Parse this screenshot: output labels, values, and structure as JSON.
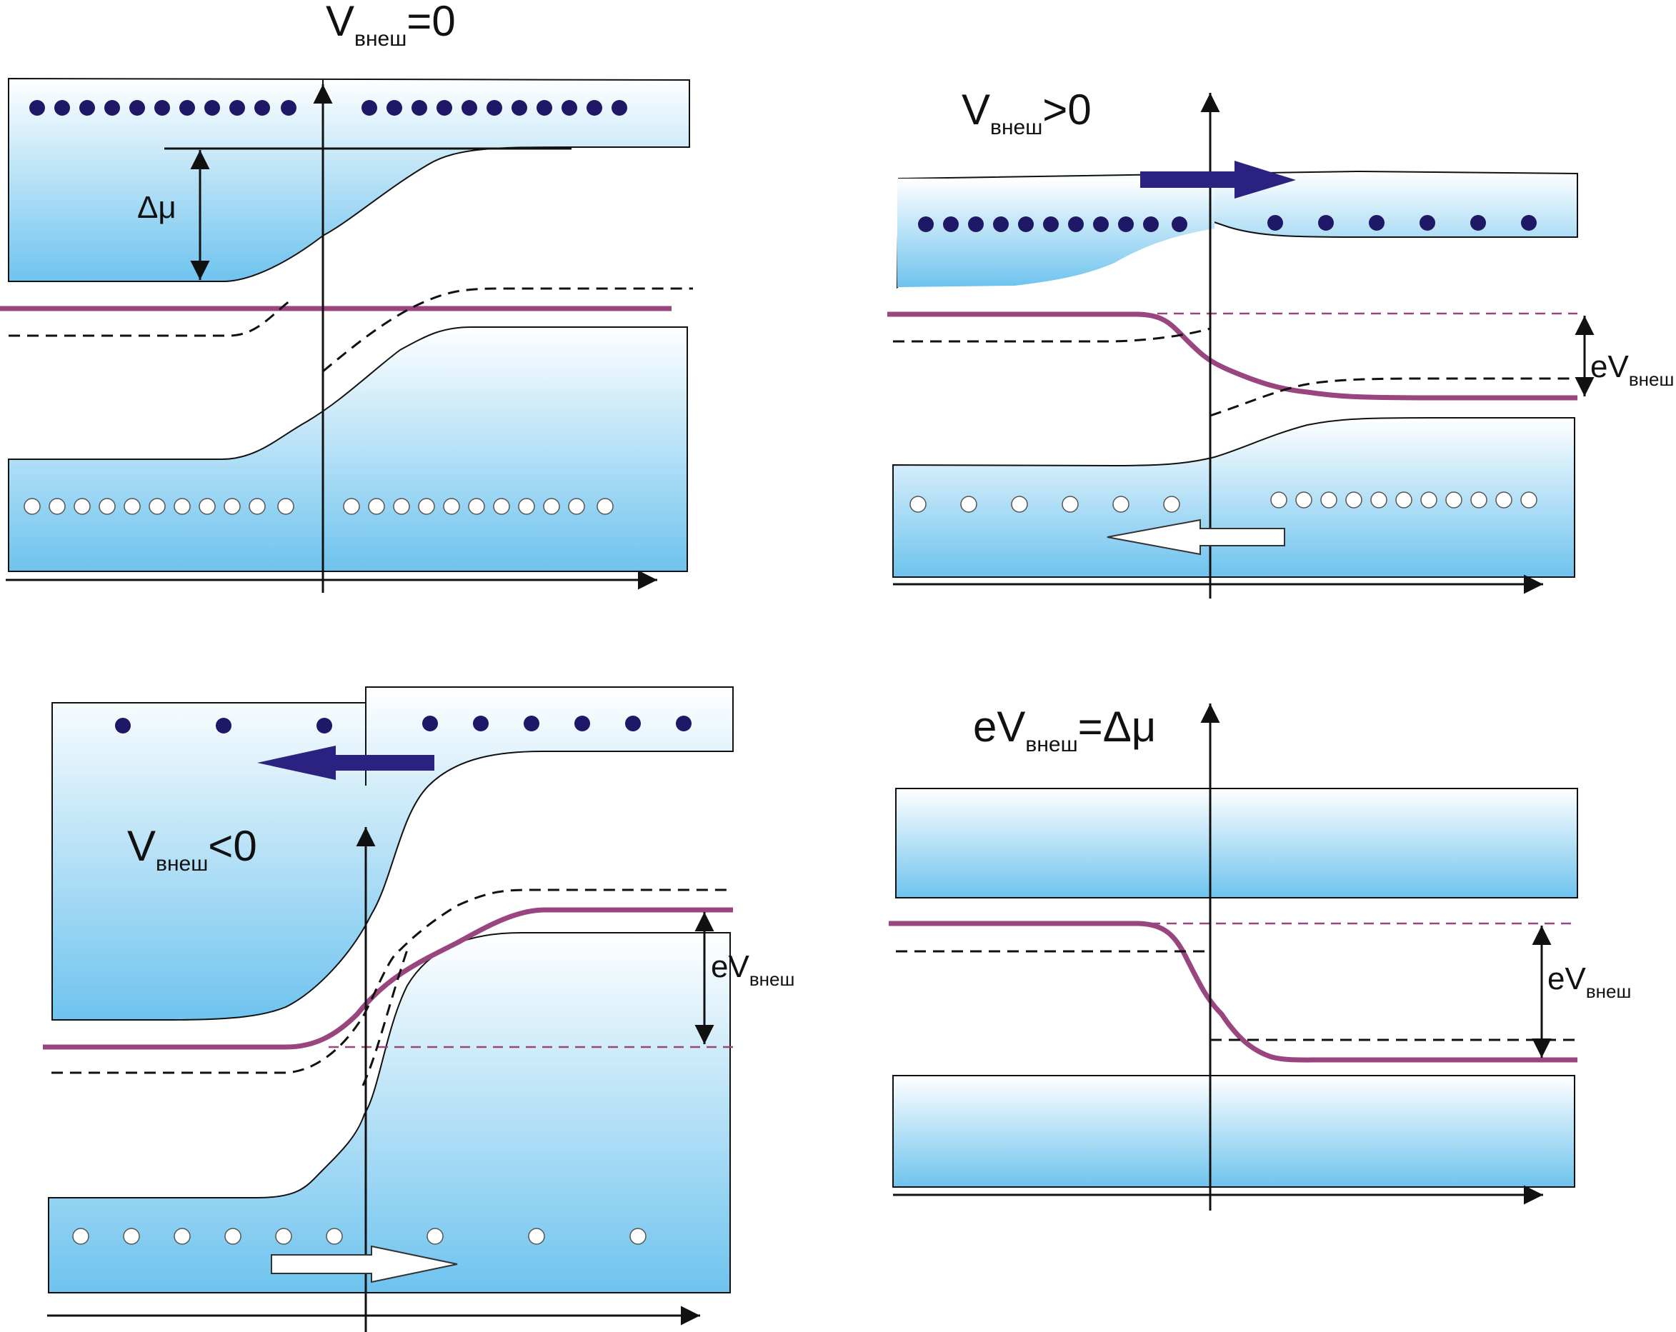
{
  "panels": [
    {
      "id": "equilibrium",
      "label_main": "V",
      "label_sub": "внеш",
      "label_tail": "=0"
    },
    {
      "id": "forward",
      "label_main": "V",
      "label_sub": "внеш",
      "label_tail": ">0"
    },
    {
      "id": "reverse",
      "label_main": "V",
      "label_sub": "внеш",
      "label_tail": "<0"
    },
    {
      "id": "flat",
      "label_main": "eV",
      "label_sub": "внеш",
      "label_tail": "=Δμ"
    }
  ],
  "delta_mu": "Δμ",
  "ev_labels": [
    {
      "main": "eV",
      "sub": "внеш"
    },
    {
      "main": "eV",
      "sub": "внеш"
    },
    {
      "main": "eV",
      "sub": "внеш"
    }
  ],
  "colors": {
    "band_light": "#ffffff",
    "band_dark": "#6ec3ee",
    "fermi": "#99457f",
    "electron": "#1f1866",
    "arrow_dark": "#2a2180",
    "outline": "#111111"
  }
}
